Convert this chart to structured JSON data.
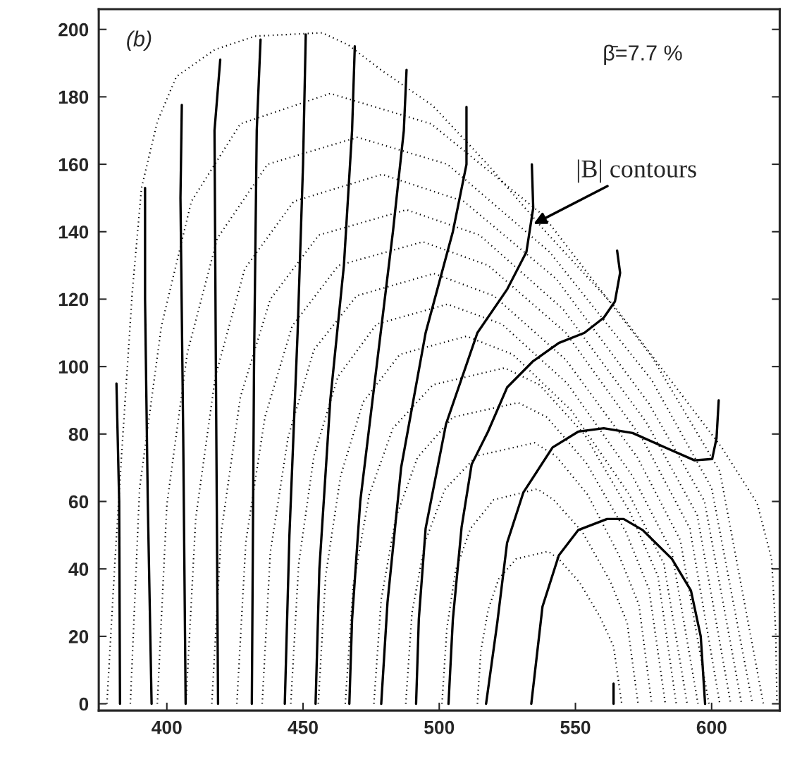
{
  "chart_data": {
    "type": "line",
    "xlim": [
      375,
      625
    ],
    "ylim": [
      -2,
      206
    ],
    "xticks": [
      400,
      450,
      500,
      550,
      600
    ],
    "yticks": [
      0,
      20,
      40,
      60,
      80,
      100,
      120,
      140,
      160,
      180,
      200
    ],
    "marker": "none",
    "annotations": [
      "(b)",
      "β̄=7.7 %",
      {
        "text": "|B| contours",
        "x": 534,
        "y": 142
      }
    ],
    "series": [
      {
        "line_style": "dotted",
        "color": "#000000",
        "x": [
          378,
          381,
          383.4,
          387.3,
          390.7,
          396.5,
          403.5,
          417.6,
          432.4,
          457,
          466.6,
          478.6,
          497.6,
          517.7,
          538.5,
          564.6,
          588,
          603.7,
          616.7,
          622,
          623.5,
          624
        ],
        "values": [
          0,
          43,
          74,
          122,
          153,
          172.6,
          186,
          194,
          198,
          199,
          195.4,
          188,
          177.4,
          160,
          140.5,
          117.6,
          92.7,
          76,
          59.5,
          43,
          22,
          0
        ]
      },
      {
        "line_style": "dotted",
        "color": "#000000",
        "x": [
          386.6,
          390,
          398,
          409,
          427,
          460,
          497,
          538,
          578,
          603,
          619
        ],
        "values": [
          0,
          64,
          112,
          149,
          172,
          181,
          172,
          145,
          103,
          69,
          0
        ]
      },
      {
        "line_style": "dotted",
        "color": "#000000",
        "x": [
          396.5,
          400,
          407.5,
          418.5,
          437,
          470,
          503,
          540.5,
          578,
          600,
          615
        ],
        "values": [
          0,
          59,
          104,
          138,
          160,
          168,
          160,
          134,
          96,
          64,
          0
        ]
      },
      {
        "line_style": "dotted",
        "color": "#000000",
        "x": [
          407,
          410.6,
          417.8,
          428.6,
          446.6,
          479,
          509,
          543,
          577,
          597.4,
          611
        ],
        "values": [
          0,
          55,
          97,
          129,
          149,
          157,
          149,
          126,
          89,
          60,
          0
        ]
      },
      {
        "line_style": "dotted",
        "color": "#000000",
        "x": [
          416.5,
          420,
          427,
          438,
          455.8,
          488,
          514.8,
          545.5,
          576,
          594.7,
          607
        ],
        "values": [
          0,
          51,
          91,
          120,
          139,
          146.5,
          139,
          117,
          83.5,
          56,
          0
        ]
      },
      {
        "line_style": "dotted",
        "color": "#000000",
        "x": [
          425.7,
          429,
          436,
          446,
          463,
          494,
          518,
          546.5,
          575,
          592,
          603
        ],
        "values": [
          0,
          48,
          85,
          112,
          130,
          137,
          130,
          110,
          78,
          52,
          0
        ]
      },
      {
        "line_style": "dotted",
        "color": "#000000",
        "x": [
          435,
          438,
          444.5,
          454,
          469.7,
          498,
          520,
          546.5,
          572.8,
          588.5,
          599
        ],
        "values": [
          0,
          45,
          79,
          105,
          121,
          127.6,
          121,
          102,
          73,
          48.5,
          0
        ]
      },
      {
        "line_style": "dotted",
        "color": "#000000",
        "x": [
          445.5,
          448.4,
          454,
          462.8,
          477,
          503,
          523,
          547,
          571,
          585.4,
          595
        ],
        "values": [
          0,
          41.5,
          73.5,
          97,
          112.6,
          118.5,
          112.6,
          95,
          67.5,
          45,
          0
        ]
      },
      {
        "line_style": "dotted",
        "color": "#000000",
        "x": [
          455.6,
          458.3,
          463.8,
          472,
          485.5,
          510,
          527,
          548.5,
          569.8,
          582.5,
          591
        ],
        "values": [
          0,
          38,
          67.6,
          89.4,
          103.6,
          109,
          103.6,
          87,
          62,
          41.4,
          0
        ]
      },
      {
        "line_style": "dotted",
        "color": "#000000",
        "x": [
          465.5,
          468.4,
          474.3,
          483,
          497.7,
          524,
          536.8,
          553.5,
          570,
          580.3,
          587
        ],
        "values": [
          0,
          35,
          62,
          81.7,
          94.6,
          99.6,
          94.6,
          79.7,
          56.8,
          37.8,
          0
        ]
      },
      {
        "line_style": "dotted",
        "color": "#000000",
        "x": [
          476,
          478.7,
          484,
          492,
          505,
          529,
          539.5,
          554,
          568.5,
          577,
          583
        ],
        "values": [
          0,
          31,
          55,
          73,
          85,
          89.3,
          85,
          71.4,
          51,
          34,
          0
        ]
      },
      {
        "line_style": "dotted",
        "color": "#000000",
        "x": [
          487.7,
          490,
          494.8,
          502,
          513.7,
          535,
          542.8,
          554.5,
          566,
          573.3,
          578
        ],
        "values": [
          0,
          27,
          48,
          63.5,
          73.5,
          77.4,
          73.5,
          62,
          44,
          29.4,
          0
        ]
      },
      {
        "line_style": "dotted",
        "color": "#000000",
        "x": [
          501,
          502.8,
          506,
          511.5,
          520,
          536,
          542,
          552.5,
          562.8,
          569,
          573
        ],
        "values": [
          0,
          22.3,
          39.5,
          52,
          60.5,
          63.7,
          60.5,
          51,
          36.3,
          24,
          0
        ]
      },
      {
        "line_style": "dotted",
        "color": "#000000",
        "x": [
          514,
          515.3,
          518,
          521.8,
          528.3,
          540,
          543.8,
          551.5,
          559,
          564,
          567
        ],
        "values": [
          0,
          15.8,
          28,
          37,
          43,
          45.2,
          43,
          36,
          25.8,
          17,
          0
        ]
      },
      {
        "line_style": "solid",
        "color": "#000000",
        "x": [
          382.8,
          382.5,
          381.5
        ],
        "values": [
          0,
          60,
          95
        ]
      },
      {
        "line_style": "solid",
        "color": "#000000",
        "x": [
          394.4,
          393,
          392,
          392
        ],
        "values": [
          0,
          60,
          120,
          153
        ]
      },
      {
        "line_style": "solid",
        "color": "#000000",
        "x": [
          406.9,
          406,
          405,
          405.5
        ],
        "values": [
          0,
          80,
          150,
          177.6
        ]
      },
      {
        "line_style": "solid",
        "color": "#000000",
        "x": [
          418.8,
          418,
          417.5,
          419.6
        ],
        "values": [
          0,
          100,
          170,
          191
        ]
      },
      {
        "line_style": "solid",
        "color": "#000000",
        "x": [
          431.2,
          432,
          433,
          434.4
        ],
        "values": [
          0,
          100,
          170,
          197
        ]
      },
      {
        "line_style": "solid",
        "color": "#000000",
        "x": [
          443.3,
          445,
          448,
          450,
          451
        ],
        "values": [
          0,
          50,
          110,
          160,
          198.5
        ]
      },
      {
        "line_style": "solid",
        "color": "#000000",
        "x": [
          454.6,
          456,
          460,
          465,
          468,
          469
        ],
        "values": [
          0,
          40,
          90,
          130,
          170,
          195
        ]
      },
      {
        "line_style": "solid",
        "color": "#000000",
        "x": [
          467,
          468,
          471,
          477,
          483,
          487,
          488
        ],
        "values": [
          0,
          25,
          60,
          100,
          140,
          170,
          188
        ]
      },
      {
        "line_style": "solid",
        "color": "#000000",
        "x": [
          478.7,
          481,
          486,
          495,
          505,
          510,
          510
        ],
        "values": [
          0,
          30,
          70,
          110,
          140,
          160,
          177
        ]
      },
      {
        "line_style": "solid",
        "color": "#000000",
        "x": [
          491.5,
          492.5,
          495,
          502.5,
          514,
          525,
          532,
          534.5,
          534
        ],
        "values": [
          0,
          25,
          52,
          83,
          110,
          123,
          134,
          147,
          160
        ]
      },
      {
        "line_style": "solid",
        "color": "#000000",
        "x": [
          503.4,
          505,
          508.2,
          511.9,
          517.9,
          524.9,
          534.3,
          543.9,
          553.3,
          560.4,
          564.5,
          566.4,
          565.3
        ],
        "values": [
          0,
          25,
          52.3,
          71,
          80.7,
          93.8,
          101.5,
          107,
          110,
          114.5,
          119.3,
          127.8,
          134.4
        ]
      },
      {
        "line_style": "solid",
        "color": "#000000",
        "x": [
          517.2,
          521.3,
          524.9,
          530.9,
          541.6,
          551,
          560.4,
          571,
          583,
          593.7,
          600.2,
          601.8,
          602.6
        ],
        "values": [
          0,
          24,
          47.7,
          62.7,
          76,
          80.7,
          81.7,
          80.3,
          76,
          72.2,
          72.6,
          78.8,
          90
        ]
      },
      {
        "line_style": "solid",
        "color": "#000000",
        "x": [
          533.8,
          537.9,
          543.9,
          551,
          561.6,
          567.7,
          574.7,
          585.4,
          592.4,
          596,
          597.6
        ],
        "values": [
          0,
          28.8,
          44,
          51.5,
          54.8,
          54.8,
          51.5,
          43,
          33.6,
          20,
          0
        ]
      },
      {
        "line_style": "solid",
        "color": "#000000",
        "x": [
          564,
          564
        ],
        "values": [
          0,
          6
        ]
      }
    ]
  }
}
